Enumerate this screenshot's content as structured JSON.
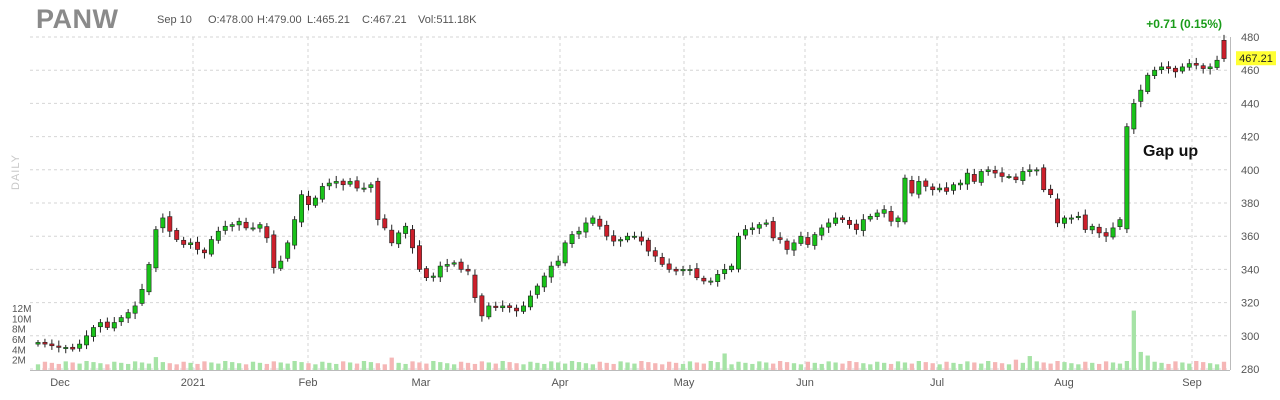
{
  "header": {
    "ticker": "PANW",
    "date": "Sep 10",
    "open": "O:478.00",
    "high": "H:479.00",
    "low": "L:465.21",
    "close": "C:467.21",
    "volume": "Vol:511.18K",
    "change": "+0.71 (0.15%)",
    "period": "DAILY"
  },
  "colors": {
    "up": "#19c219",
    "down": "#cc1f2b",
    "vol_up": "#a6e3a6",
    "vol_down": "#f5b6b6",
    "grid": "#d6d6d6",
    "last_price_bg": "#ffff33",
    "change_text": "#1a9c1a"
  },
  "annotation": "Gap up",
  "chart_data": {
    "type": "candlestick",
    "price_axis": {
      "ticks": [
        "480",
        "460",
        "440",
        "420",
        "400",
        "380",
        "360",
        "340",
        "320",
        "300",
        "280"
      ],
      "ylim": [
        280,
        480
      ]
    },
    "volume_axis": {
      "ticks": [
        "12M",
        "10M",
        "8M",
        "6M",
        "4M",
        "2M"
      ],
      "ylim": [
        0,
        12
      ]
    },
    "x_labels": [
      "Dec",
      "2021",
      "Feb",
      "Mar",
      "Apr",
      "May",
      "Jun",
      "Jul",
      "Aug",
      "Sep"
    ],
    "last_price": "467.21",
    "closes": [
      296,
      295,
      294,
      293,
      293,
      292,
      295,
      300,
      305,
      308,
      305,
      308,
      311,
      314,
      318,
      328,
      343,
      364,
      371,
      363,
      358,
      355,
      356,
      352,
      350,
      358,
      363,
      366,
      367,
      369,
      365,
      365,
      367,
      359,
      341,
      345,
      356,
      370,
      385,
      379,
      383,
      390,
      392,
      393,
      391,
      393,
      389,
      389,
      391,
      370,
      365,
      356,
      362,
      366,
      353,
      340,
      335,
      336,
      342,
      343,
      344,
      340,
      339,
      323,
      312,
      318,
      317,
      318,
      317,
      315,
      318,
      324,
      330,
      336,
      342,
      345,
      356,
      361,
      363,
      368,
      371,
      366,
      360,
      357,
      358,
      360,
      360,
      357,
      351,
      348,
      343,
      340,
      339,
      340,
      340,
      335,
      333,
      333,
      337,
      340,
      342,
      360,
      364,
      365,
      367,
      368,
      359,
      358,
      352,
      356,
      360,
      355,
      361,
      365,
      368,
      371,
      370,
      367,
      364,
      370,
      372,
      374,
      376,
      369,
      371,
      395,
      386,
      393,
      390,
      388,
      389,
      387,
      391,
      392,
      398,
      393,
      399,
      400,
      398,
      396,
      396,
      394,
      399,
      400,
      400,
      388,
      385,
      368,
      371,
      371,
      372,
      364,
      366,
      362,
      360,
      365,
      370,
      426,
      440,
      448,
      457,
      460,
      462,
      461,
      459,
      462,
      464,
      463,
      461,
      462,
      466,
      467
    ]
  }
}
